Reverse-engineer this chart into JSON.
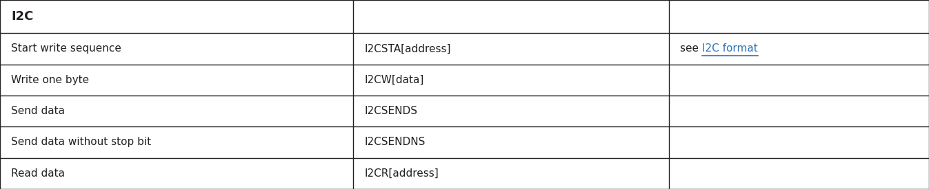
{
  "title": "I2C",
  "columns": [
    0.0,
    0.38,
    0.72,
    1.0
  ],
  "header_row": [
    "I2C",
    "",
    ""
  ],
  "rows": [
    [
      "Start write sequence",
      "I2CSTA[address]",
      "see I2C format"
    ],
    [
      "Write one byte",
      "I2CW[data]",
      ""
    ],
    [
      "Send data",
      "I2CSENDS",
      ""
    ],
    [
      "Send data without stop bit",
      "I2CSENDNS",
      ""
    ],
    [
      "Read data",
      "I2CR[address]",
      ""
    ]
  ],
  "background_color": "#ffffff",
  "text_color": "#231f20",
  "link_color": "#2e74b5",
  "border_color": "#231f20",
  "font_size": 11,
  "header_font_size": 13,
  "link_text_see": "see ",
  "link_text_link": "I2C format",
  "figsize": [
    13.47,
    2.75
  ],
  "dpi": 100
}
